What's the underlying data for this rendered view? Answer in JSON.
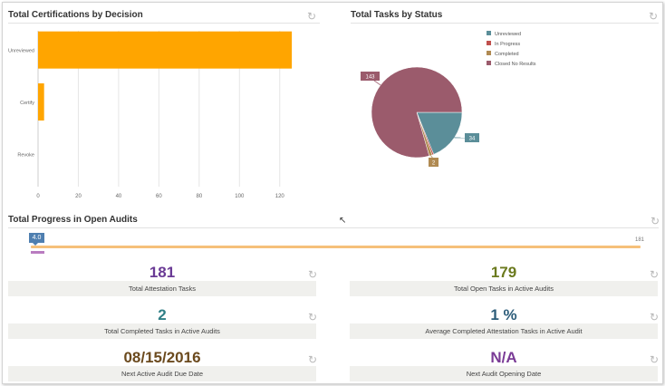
{
  "cert_panel": {
    "title": "Total Certifications by Decision",
    "refresh_icon": "refresh-icon"
  },
  "tasks_panel": {
    "title": "Total Tasks by Status",
    "refresh_icon": "refresh-icon"
  },
  "progress_panel": {
    "title": "Total Progress in Open Audits",
    "refresh_icon": "refresh-icon",
    "current_value": "4.0",
    "max_value": "181",
    "progress_fraction": 0.022,
    "bar_color": "#f6c07a",
    "marker_color": "#4f7fb0",
    "sub_bar_color": "#b97cc0"
  },
  "chart_data": [
    {
      "type": "bar",
      "title": "Total Certifications by Decision",
      "orientation": "horizontal",
      "categories": [
        "Unreviewed",
        "Certify",
        "Revoke"
      ],
      "values": [
        126,
        3,
        0
      ],
      "xlim": [
        0,
        130
      ],
      "ticks": [
        "0",
        "20",
        "40",
        "60",
        "80",
        "100",
        "120"
      ],
      "tick_values": [
        0,
        20,
        40,
        60,
        80,
        100,
        120
      ],
      "color": "#ffa500",
      "grid": true
    },
    {
      "type": "pie",
      "title": "Total Tasks by Status",
      "legend_position": "top-right",
      "slices": [
        {
          "label": "Unreviewed",
          "value": 34,
          "color": "#5b8e99",
          "data_label": "34"
        },
        {
          "label": "In Progress",
          "value": 1,
          "color": "#c0504d",
          "data_label": ""
        },
        {
          "label": "Completed",
          "value": 2,
          "color": "#b08a52",
          "data_label": "2"
        },
        {
          "label": "Closed No Results",
          "value": 143,
          "color": "#9b5b6c",
          "data_label": "143"
        }
      ]
    }
  ],
  "metrics": [
    {
      "value": "181",
      "label": "Total Attestation Tasks",
      "color": "#6a3a95",
      "refresh_icon": "refresh-icon"
    },
    {
      "value": "179",
      "label": "Total Open Tasks in Active Audits",
      "color": "#6b7a1e",
      "refresh_icon": "refresh-icon"
    },
    {
      "value": "2",
      "label": "Total Completed Tasks in Active Audits",
      "color": "#2f7f86",
      "refresh_icon": "refresh-icon"
    },
    {
      "value": "1 %",
      "label": "Average Completed Attestation Tasks in Active Audit",
      "color": "#2d5d7a",
      "refresh_icon": "refresh-icon"
    },
    {
      "value": "08/15/2016",
      "label": "Next Active Audit Due Date",
      "color": "#6b4a1e",
      "refresh_icon": "refresh-icon"
    },
    {
      "value": "N/A",
      "label": "Next Audit Opening Date",
      "color": "#7a3b96",
      "refresh_icon": "refresh-icon"
    }
  ]
}
